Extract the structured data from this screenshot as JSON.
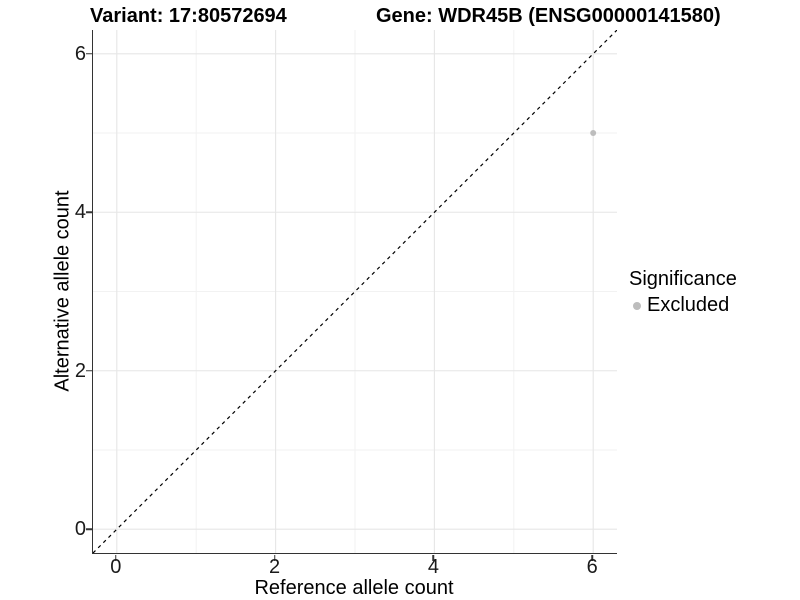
{
  "chart_data": {
    "type": "scatter",
    "title_left": "Variant: 17:80572694",
    "title_right": "Gene: WDR45B (ENSG00000141580)",
    "xlabel": "Reference allele count",
    "ylabel": "Alternative allele count",
    "xlim": [
      -0.3,
      6.3
    ],
    "ylim": [
      -0.3,
      6.3
    ],
    "x_ticks": [
      0,
      2,
      4,
      6
    ],
    "y_ticks": [
      0,
      2,
      4,
      6
    ],
    "x_minor_gridlines": [
      1,
      3,
      5
    ],
    "y_minor_gridlines": [
      1,
      3,
      5
    ],
    "grid": true,
    "series": [
      {
        "name": "Excluded",
        "color": "#bdbdbd",
        "points": [
          {
            "x": 6,
            "y": 5
          }
        ]
      }
    ],
    "reference_line": {
      "style": "dashed",
      "color": "#000000",
      "from": {
        "x": -0.3,
        "y": -0.3
      },
      "to": {
        "x": 6.3,
        "y": 6.3
      }
    },
    "legend": {
      "title": "Significance",
      "position": "right",
      "items": [
        {
          "label": "Excluded",
          "color": "#bdbdbd",
          "marker": "circle"
        }
      ]
    }
  },
  "colors": {
    "background": "#ffffff",
    "axis_line": "#333333",
    "grid_major": "#e6e6e6",
    "grid_minor": "#f2f2f2",
    "tick_text": "#1a1a1a",
    "point": "#bdbdbd",
    "dashed_line": "#000000"
  }
}
